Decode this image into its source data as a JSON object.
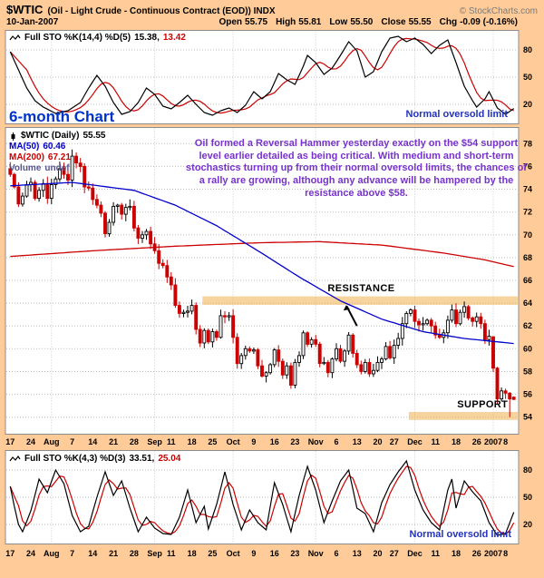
{
  "header": {
    "symbol": "$WTIC",
    "description": "(Oil - Light Crude - Continuous Contract (EOD)) INDX",
    "copyright": "© StockCharts.com",
    "date": "10-Jan-2007",
    "quote": {
      "open_label": "Open",
      "open": "55.75",
      "high_label": "High",
      "high": "55.81",
      "low_label": "Low",
      "low": "55.50",
      "close_label": "Close",
      "close": "55.55",
      "chg_label": "Chg",
      "chg": "-0.09 (-0.16%)"
    }
  },
  "labels": {
    "six_month": "6-month Chart",
    "annotation": "Oil formed a Reversal Hammer yesterday exactly on the $54 support level earlier detailed as being critical. With medium and short-term stochastics turning up from their normal oversold limits, the chances of a rally are growing, although any advance will be hampered by the resistance above $58.",
    "resistance": "RESISTANCE",
    "support": "SUPPORT",
    "oversold_top": "Normal oversold limit",
    "oversold_bottom": "Normal oversold limit"
  },
  "legends": {
    "top": {
      "name": "Full STO %K(14,4) %D(5)",
      "k": "15.38,",
      "d": "13.42"
    },
    "main": {
      "symbol": "$WTIC (Daily)",
      "price": "55.55",
      "ma50_label": "MA(50)",
      "ma50": "60.46",
      "ma200_label": "MA(200)",
      "ma200": "67.21",
      "volume_label": "Volume",
      "volume": "undef"
    },
    "bottom": {
      "name": "Full STO %K(4,3) %D(3)",
      "k": "33.51,",
      "d": "25.04"
    }
  },
  "colors": {
    "background": "#FFCC99",
    "panel_border": "#8C8C8C",
    "grid": "#BDBDBD",
    "accent_blue": "#2233BB",
    "annotation_purple": "#7733CC",
    "negative_red": "#CC0000"
  },
  "chart_data": [
    {
      "type": "line",
      "panel": "top-stochastic",
      "indicator": "Full STO %K(14,4) %D(5)",
      "last_values": {
        "k": 15.38,
        "d": 13.42
      },
      "ylim": [
        0,
        100
      ],
      "yticks": [
        80,
        50,
        20
      ],
      "d_smoothing": 5,
      "k_color": "#000000",
      "d_color": "#CC0000",
      "annotation": "Normal oversold limit",
      "k_keypoints": [
        [
          0,
          78
        ],
        [
          2,
          58
        ],
        [
          4,
          38
        ],
        [
          6,
          24
        ],
        [
          8,
          17
        ],
        [
          11,
          10
        ],
        [
          14,
          13
        ],
        [
          17,
          22
        ],
        [
          19,
          38
        ],
        [
          21,
          52
        ],
        [
          23,
          40
        ],
        [
          25,
          22
        ],
        [
          27,
          9
        ],
        [
          29,
          12
        ],
        [
          31,
          22
        ],
        [
          33,
          38
        ],
        [
          35,
          31
        ],
        [
          37,
          18
        ],
        [
          39,
          15
        ],
        [
          41,
          22
        ],
        [
          43,
          30
        ],
        [
          45,
          20
        ],
        [
          47,
          11
        ],
        [
          49,
          8
        ],
        [
          51,
          13
        ],
        [
          53,
          16
        ],
        [
          55,
          11
        ],
        [
          57,
          19
        ],
        [
          59,
          34
        ],
        [
          61,
          26
        ],
        [
          63,
          34
        ],
        [
          65,
          54
        ],
        [
          67,
          47
        ],
        [
          69,
          42
        ],
        [
          71,
          62
        ],
        [
          72,
          74
        ],
        [
          74,
          66
        ],
        [
          76,
          53
        ],
        [
          78,
          60
        ],
        [
          80,
          74
        ],
        [
          82,
          89
        ],
        [
          84,
          79
        ],
        [
          86,
          50
        ],
        [
          88,
          56
        ],
        [
          90,
          78
        ],
        [
          92,
          93
        ],
        [
          94,
          95
        ],
        [
          96,
          89
        ],
        [
          98,
          93
        ],
        [
          100,
          86
        ],
        [
          102,
          76
        ],
        [
          104,
          85
        ],
        [
          106,
          91
        ],
        [
          108,
          66
        ],
        [
          110,
          40
        ],
        [
          112,
          24
        ],
        [
          113,
          17
        ],
        [
          115,
          26
        ],
        [
          116,
          34
        ],
        [
          118,
          16
        ],
        [
          120,
          9
        ],
        [
          122,
          15.38
        ]
      ]
    },
    {
      "type": "candlestick",
      "panel": "price",
      "symbol": "$WTIC (Daily)",
      "last_close": 55.55,
      "ylim": [
        52.7,
        79.3
      ],
      "yticks": [
        78,
        76,
        74,
        72,
        70,
        68,
        66,
        64,
        62,
        60,
        58,
        56,
        54
      ],
      "up_color": "#000000",
      "up_fill": "#FFFFFF",
      "down_color": "#CC0000",
      "zone_color": "#F0AE4E",
      "closes": [
        75.3,
        74.2,
        72.7,
        73.4,
        74.4,
        74.6,
        73.2,
        73.9,
        74.5,
        73.2,
        74.4,
        74.9,
        75.8,
        75.3,
        74.8,
        76.9,
        76.3,
        76.0,
        74.2,
        74.1,
        73.1,
        72.6,
        71.9,
        70.1,
        71.1,
        72.5,
        72.6,
        71.8,
        72.4,
        72.5,
        70.6,
        69.7,
        70.0,
        70.3,
        69.2,
        68.6,
        67.5,
        67.3,
        66.3,
        65.6,
        63.8,
        63.1,
        63.2,
        63.3,
        63.8,
        61.7,
        60.5,
        61.6,
        60.6,
        61.5,
        61.0,
        62.9,
        62.8,
        62.9,
        61.0,
        58.7,
        59.4,
        60.0,
        59.8,
        59.9,
        58.5,
        57.6,
        57.9,
        58.6,
        59.9,
        58.9,
        57.7,
        58.5,
        56.8,
        58.8,
        59.4,
        61.4,
        60.4,
        60.8,
        60.4,
        58.7,
        58.8,
        57.9,
        59.1,
        60.0,
        58.9,
        59.8,
        61.2,
        59.6,
        58.6,
        58.0,
        58.8,
        57.8,
        58.1,
        58.8,
        59.1,
        60.2,
        59.2,
        60.3,
        60.9,
        62.2,
        63.1,
        63.4,
        62.4,
        62.1,
        62.2,
        62.5,
        62.0,
        61.2,
        61.0,
        61.4,
        62.5,
        63.4,
        62.2,
        63.2,
        63.7,
        62.7,
        62.4,
        62.8,
        62.2,
        60.8,
        61.1,
        58.3,
        55.6,
        56.3,
        56.1,
        55.6,
        55.55
      ],
      "ohlc_overrides": {
        "117": [
          61.05,
          61.1,
          57.95,
          58.3
        ],
        "118": [
          58.3,
          58.4,
          55.1,
          55.6
        ],
        "119": [
          55.6,
          56.6,
          55.4,
          56.3
        ],
        "120": [
          56.3,
          56.5,
          55.6,
          56.1
        ],
        "121": [
          56.1,
          56.2,
          54.0,
          55.6
        ],
        "122": [
          55.75,
          55.81,
          55.5,
          55.55
        ]
      },
      "ma50": {
        "label": "MA(50)",
        "last": 60.46,
        "color": "#0000CC",
        "keypoints": [
          [
            0,
            74.3
          ],
          [
            15,
            74.6
          ],
          [
            30,
            73.9
          ],
          [
            40,
            72.6
          ],
          [
            50,
            70.8
          ],
          [
            60,
            68.6
          ],
          [
            70,
            66.3
          ],
          [
            80,
            64.2
          ],
          [
            90,
            62.6
          ],
          [
            100,
            61.5
          ],
          [
            110,
            60.9
          ],
          [
            122,
            60.46
          ]
        ]
      },
      "ma200": {
        "label": "MA(200)",
        "last": 67.21,
        "color": "#CC0000",
        "keypoints": [
          [
            0,
            68.1
          ],
          [
            20,
            68.6
          ],
          [
            40,
            69.0
          ],
          [
            60,
            69.3
          ],
          [
            75,
            69.4
          ],
          [
            90,
            69.1
          ],
          [
            105,
            68.4
          ],
          [
            115,
            67.8
          ],
          [
            122,
            67.21
          ]
        ]
      },
      "zones": [
        {
          "name": "RESISTANCE",
          "price_from": 63.85,
          "price_to": 64.6,
          "start_index": 47
        },
        {
          "name": "SUPPORT",
          "price_from": 53.75,
          "price_to": 54.45,
          "start_index": 97
        }
      ],
      "x_tick_indices": [
        0,
        5,
        10,
        15,
        20,
        25,
        30,
        35,
        39,
        44,
        49,
        54,
        59,
        64,
        69,
        74,
        79,
        84,
        89,
        93,
        98,
        103,
        108,
        113,
        117,
        120
      ],
      "x_tick_labels": [
        "17",
        "24",
        "Aug",
        "7",
        "14",
        "21",
        "28",
        "Sep",
        "11",
        "18",
        "25",
        "Oct",
        "9",
        "16",
        "23",
        "Nov",
        "6",
        "13",
        "20",
        "27",
        "Dec",
        "11",
        "18",
        "26",
        "2007",
        "8"
      ],
      "month_gridline_indices": [
        10,
        35,
        54,
        74,
        98,
        117
      ]
    },
    {
      "type": "line",
      "panel": "bottom-stochastic",
      "indicator": "Full STO %K(4,3) %D(3)",
      "last_values": {
        "k": 33.51,
        "d": 25.04
      },
      "ylim": [
        0,
        100
      ],
      "yticks": [
        80,
        50,
        20
      ],
      "d_smoothing": 3,
      "k_color": "#000000",
      "d_color": "#CC0000",
      "annotation": "Normal oversold limit",
      "k_keypoints": [
        [
          0,
          62
        ],
        [
          1,
          40
        ],
        [
          2,
          20
        ],
        [
          3,
          12
        ],
        [
          5,
          35
        ],
        [
          7,
          70
        ],
        [
          9,
          55
        ],
        [
          11,
          80
        ],
        [
          13,
          65
        ],
        [
          15,
          30
        ],
        [
          17,
          12
        ],
        [
          19,
          18
        ],
        [
          21,
          50
        ],
        [
          23,
          78
        ],
        [
          25,
          52
        ],
        [
          27,
          68
        ],
        [
          29,
          38
        ],
        [
          31,
          12
        ],
        [
          33,
          28
        ],
        [
          35,
          16
        ],
        [
          37,
          10
        ],
        [
          39,
          9
        ],
        [
          41,
          28
        ],
        [
          43,
          58
        ],
        [
          45,
          22
        ],
        [
          47,
          40
        ],
        [
          48,
          15
        ],
        [
          50,
          42
        ],
        [
          52,
          78
        ],
        [
          54,
          42
        ],
        [
          56,
          14
        ],
        [
          58,
          36
        ],
        [
          60,
          22
        ],
        [
          62,
          14
        ],
        [
          64,
          66
        ],
        [
          66,
          42
        ],
        [
          68,
          12
        ],
        [
          70,
          52
        ],
        [
          72,
          84
        ],
        [
          74,
          58
        ],
        [
          76,
          22
        ],
        [
          78,
          46
        ],
        [
          80,
          68
        ],
        [
          82,
          80
        ],
        [
          84,
          38
        ],
        [
          86,
          32
        ],
        [
          88,
          12
        ],
        [
          90,
          44
        ],
        [
          92,
          64
        ],
        [
          94,
          78
        ],
        [
          96,
          90
        ],
        [
          98,
          58
        ],
        [
          100,
          36
        ],
        [
          102,
          22
        ],
        [
          104,
          14
        ],
        [
          106,
          58
        ],
        [
          107,
          70
        ],
        [
          108,
          38
        ],
        [
          110,
          68
        ],
        [
          112,
          56
        ],
        [
          114,
          46
        ],
        [
          116,
          22
        ],
        [
          118,
          8
        ],
        [
          120,
          10
        ],
        [
          122,
          33.51
        ]
      ]
    }
  ]
}
